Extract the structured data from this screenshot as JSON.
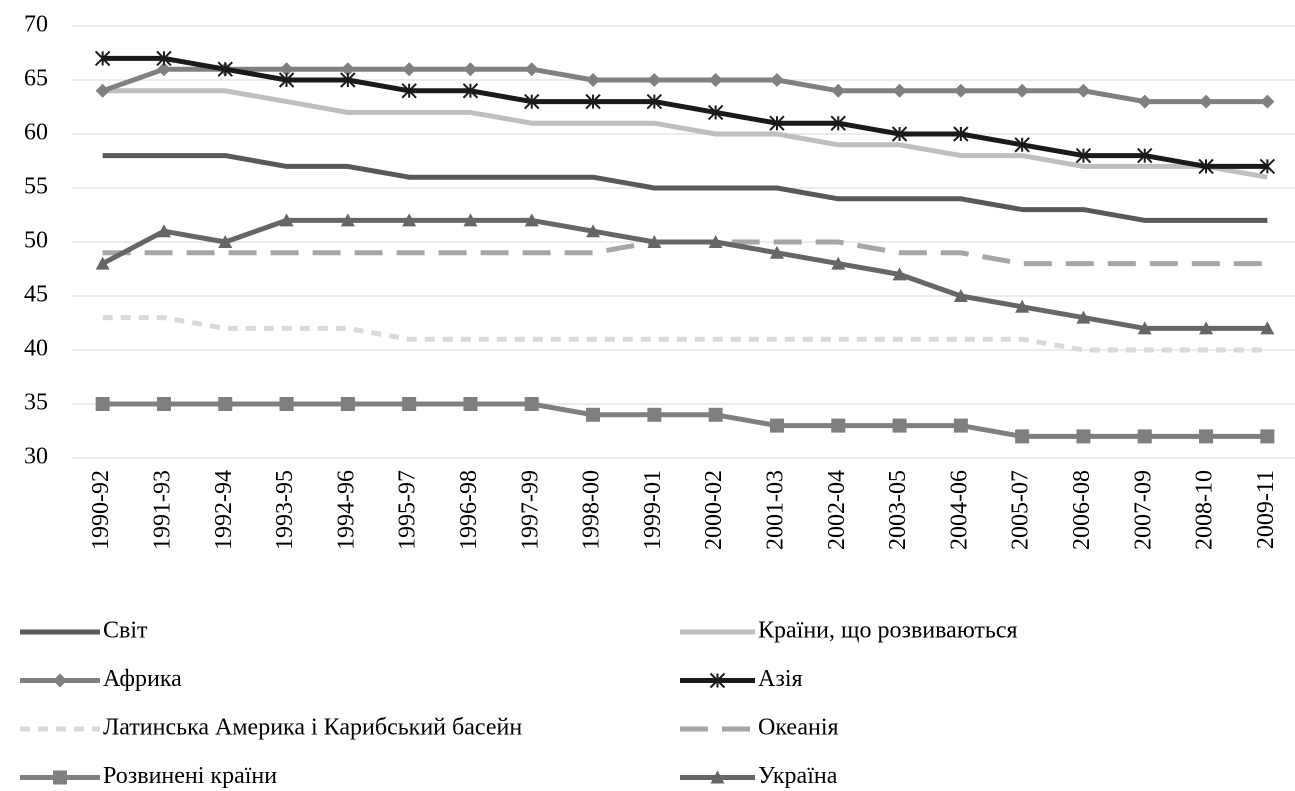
{
  "chart_data": {
    "type": "line",
    "categories": [
      "1990-92",
      "1991-93",
      "1992-94",
      "1993-95",
      "1994-96",
      "1995-97",
      "1996-98",
      "1997-99",
      "1998-00",
      "1999-01",
      "2000-02",
      "2001-03",
      "2002-04",
      "2003-05",
      "2004-06",
      "2005-07",
      "2006-08",
      "2007-09",
      "2008-10",
      "2009-11"
    ],
    "ylim": [
      30,
      70
    ],
    "yticks": [
      30,
      35,
      40,
      45,
      50,
      55,
      60,
      65,
      70
    ],
    "grid": true,
    "series": [
      {
        "name": "Світ",
        "color": "#595959",
        "marker": "none",
        "dash": "solid",
        "values": [
          58,
          58,
          58,
          57,
          57,
          56,
          56,
          56,
          56,
          55,
          55,
          55,
          54,
          54,
          54,
          53,
          53,
          52,
          52,
          52
        ]
      },
      {
        "name": "Країни, що розвиваються",
        "color": "#bfbfbf",
        "marker": "none",
        "dash": "solid",
        "values": [
          64,
          64,
          64,
          63,
          62,
          62,
          62,
          61,
          61,
          61,
          60,
          60,
          59,
          59,
          58,
          58,
          57,
          57,
          57,
          56
        ]
      },
      {
        "name": "Африка",
        "color": "#808080",
        "marker": "diamond",
        "dash": "solid",
        "values": [
          64,
          66,
          66,
          66,
          66,
          66,
          66,
          66,
          65,
          65,
          65,
          65,
          64,
          64,
          64,
          64,
          64,
          63,
          63,
          63
        ]
      },
      {
        "name": "Азія",
        "color": "#1a1a1a",
        "marker": "star",
        "dash": "solid",
        "values": [
          67,
          67,
          66,
          65,
          65,
          64,
          64,
          63,
          63,
          63,
          62,
          61,
          61,
          60,
          60,
          59,
          58,
          58,
          57,
          57
        ]
      },
      {
        "name": "Латинська Америка і Карибський басейн",
        "color": "#d9d9d9",
        "marker": "none",
        "dash": "dashed",
        "values": [
          43,
          43,
          42,
          42,
          42,
          41,
          41,
          41,
          41,
          41,
          41,
          41,
          41,
          41,
          41,
          41,
          40,
          40,
          40,
          40
        ]
      },
      {
        "name": "Океанія",
        "color": "#a6a6a6",
        "marker": "none",
        "dash": "longdash",
        "values": [
          49,
          49,
          49,
          49,
          49,
          49,
          49,
          49,
          49,
          50,
          50,
          50,
          50,
          49,
          49,
          48,
          48,
          48,
          48,
          48
        ]
      },
      {
        "name": "Розвинені країни",
        "color": "#7f7f7f",
        "marker": "square",
        "dash": "solid",
        "values": [
          35,
          35,
          35,
          35,
          35,
          35,
          35,
          35,
          34,
          34,
          34,
          33,
          33,
          33,
          33,
          32,
          32,
          32,
          32,
          32
        ]
      },
      {
        "name": "Україна",
        "color": "#666666",
        "marker": "triangle",
        "dash": "solid",
        "values": [
          48,
          51,
          50,
          52,
          52,
          52,
          52,
          52,
          51,
          50,
          50,
          49,
          48,
          47,
          45,
          44,
          43,
          42,
          42,
          42
        ]
      }
    ]
  }
}
